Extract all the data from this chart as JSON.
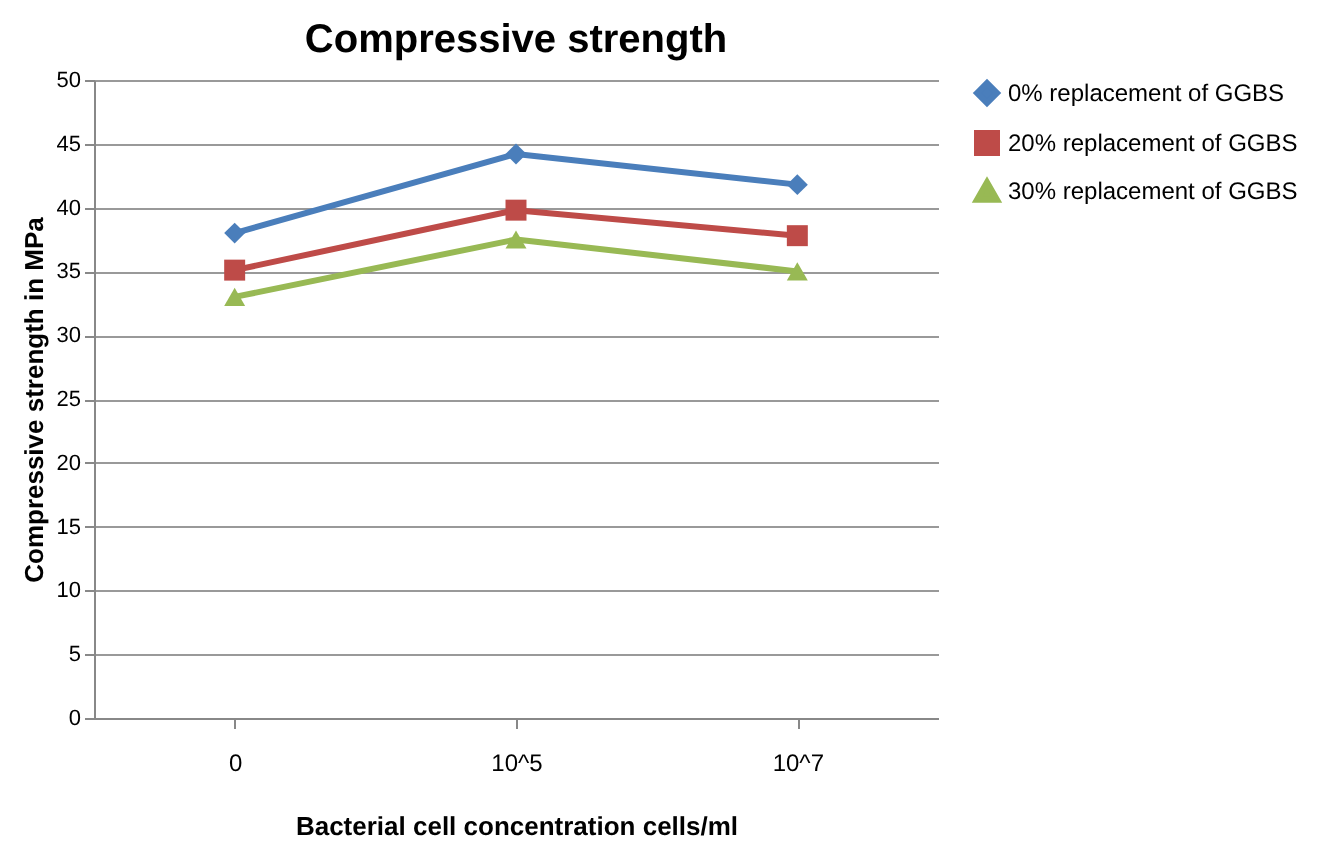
{
  "chart_data": {
    "type": "line",
    "title": "Compressive strength",
    "xlabel": "Bacterial cell concentration cells/ml",
    "ylabel": "Compressive strength in MPa",
    "categories": [
      "0",
      "10^5",
      "10^7"
    ],
    "series": [
      {
        "name": "0% replacement of GGBS",
        "color": "#4a7ebb",
        "marker": "diamond",
        "values": [
          38,
          44.2,
          41.8
        ]
      },
      {
        "name": "20% replacement of GGBS",
        "color": "#be4b48",
        "marker": "square",
        "values": [
          35.1,
          39.8,
          37.8
        ]
      },
      {
        "name": "30% replacement of GGBS",
        "color": "#98b954",
        "marker": "triangle",
        "values": [
          33,
          37.5,
          35
        ]
      }
    ],
    "ylim": [
      0,
      50
    ],
    "yticks": [
      0,
      5,
      10,
      15,
      20,
      25,
      30,
      35,
      40,
      45,
      50
    ],
    "grid": "y",
    "legend": "right"
  }
}
